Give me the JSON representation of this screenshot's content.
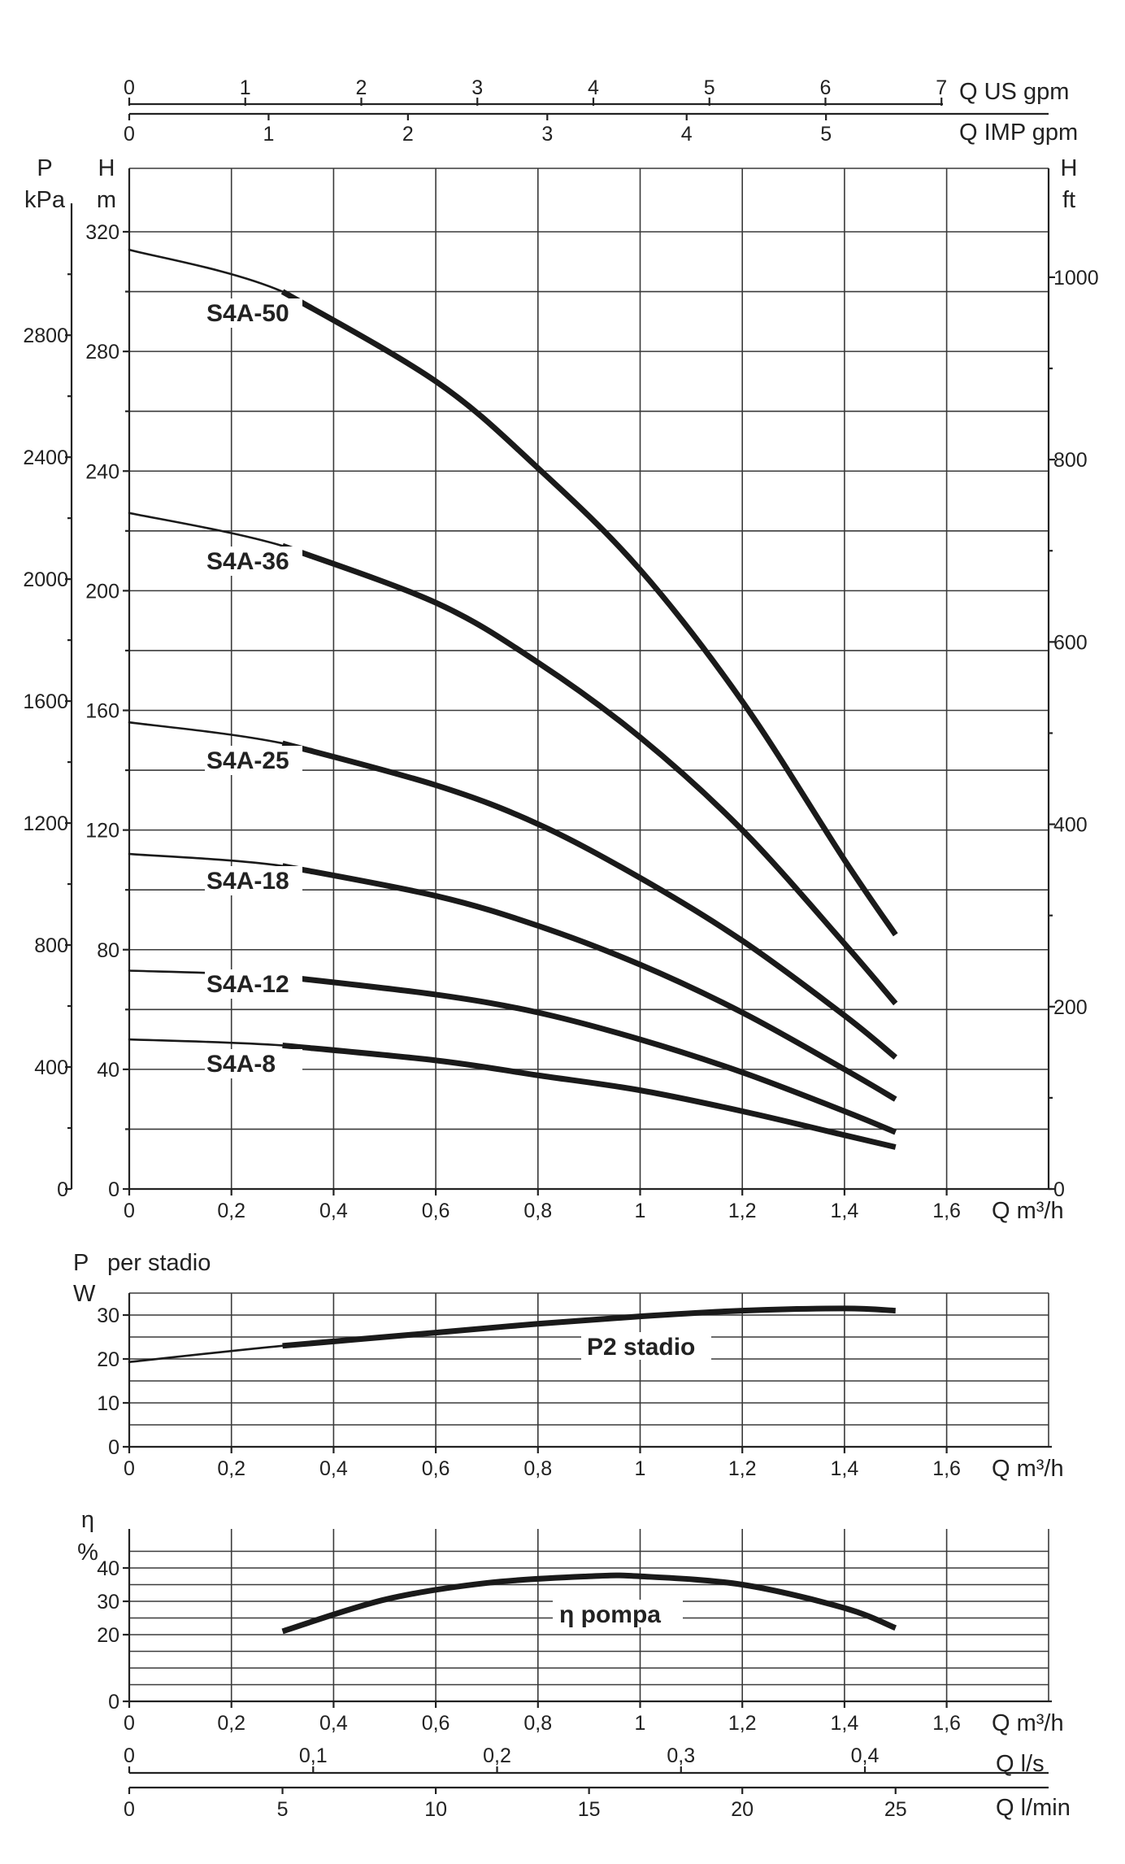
{
  "chart_data": [
    {
      "type": "line",
      "panel": "head",
      "xlabel": "Q m³/h",
      "x_ticks": [
        "0",
        "0,2",
        "0,4",
        "0,6",
        "0,8",
        "1",
        "1,2",
        "1,4",
        "1,6"
      ],
      "xlim": [
        0,
        1.8
      ],
      "ylabel_left_outer": [
        "P",
        "kPa"
      ],
      "ylabel_left_inner": [
        "H",
        "m"
      ],
      "ylabel_right": [
        "H",
        "ft"
      ],
      "ylim": [
        0,
        320
      ],
      "y_ticks_m": [
        "320",
        "280",
        "240",
        "200",
        "160",
        "120",
        "80",
        "40",
        "0"
      ],
      "y_ticks_kpa": [
        "2800",
        "2400",
        "2000",
        "1600",
        "1200",
        "800",
        "400",
        "0"
      ],
      "y_ticks_ft": [
        "1000",
        "800",
        "600",
        "400",
        "200",
        "0"
      ],
      "grid": true,
      "top_axes": [
        {
          "label": "Q US gpm",
          "ticks": [
            "0",
            "1",
            "2",
            "3",
            "4",
            "5",
            "6",
            "7"
          ]
        },
        {
          "label": "Q IMP gpm",
          "ticks": [
            "0",
            "1",
            "2",
            "3",
            "4",
            "5"
          ]
        }
      ],
      "series": [
        {
          "name": "S4A-50",
          "x": [
            0,
            0.3,
            0.6,
            0.8,
            1.0,
            1.2,
            1.4,
            1.5
          ],
          "values": [
            314,
            300,
            270,
            241,
            207,
            163,
            110,
            85
          ]
        },
        {
          "name": "S4A-36",
          "x": [
            0,
            0.3,
            0.6,
            0.8,
            1.0,
            1.2,
            1.4,
            1.5
          ],
          "values": [
            226,
            215,
            196,
            176,
            151,
            120,
            82,
            62
          ]
        },
        {
          "name": "S4A-25",
          "x": [
            0,
            0.3,
            0.6,
            0.8,
            1.0,
            1.2,
            1.4,
            1.5
          ],
          "values": [
            156,
            149,
            135,
            122,
            104,
            83,
            58,
            44
          ]
        },
        {
          "name": "S4A-18",
          "x": [
            0,
            0.3,
            0.6,
            0.8,
            1.0,
            1.2,
            1.4,
            1.5
          ],
          "values": [
            112,
            108,
            98,
            88,
            75,
            59,
            40,
            30
          ]
        },
        {
          "name": "S4A-12",
          "x": [
            0,
            0.3,
            0.6,
            0.8,
            1.0,
            1.2,
            1.4,
            1.5
          ],
          "values": [
            73,
            71,
            65,
            59,
            50,
            39,
            26,
            19
          ]
        },
        {
          "name": "S4A-8",
          "x": [
            0,
            0.3,
            0.6,
            0.8,
            1.0,
            1.2,
            1.4,
            1.5
          ],
          "values": [
            50,
            48,
            43,
            38,
            33,
            26,
            18,
            14
          ]
        }
      ]
    },
    {
      "type": "line",
      "panel": "power",
      "title": "per stadio",
      "ylabel": [
        "P",
        "W"
      ],
      "xlabel": "Q m³/h",
      "x_ticks": [
        "0",
        "0,2",
        "0,4",
        "0,6",
        "0,8",
        "1",
        "1,2",
        "1,4",
        "1,6"
      ],
      "xlim": [
        0,
        1.8
      ],
      "ylim": [
        0,
        35
      ],
      "y_ticks": [
        "30",
        "20",
        "10",
        "0"
      ],
      "grid": true,
      "series": [
        {
          "name": "P2 stadio",
          "x": [
            0,
            0.3,
            0.6,
            0.8,
            1.0,
            1.2,
            1.4,
            1.5
          ],
          "values": [
            19.3,
            23,
            26,
            28,
            29.7,
            31,
            31.5,
            31
          ]
        }
      ]
    },
    {
      "type": "line",
      "panel": "efficiency",
      "ylabel": [
        "η",
        "%"
      ],
      "xlabel": "Q m³/h",
      "x_ticks": [
        "0",
        "0,2",
        "0,4",
        "0,6",
        "0,8",
        "1",
        "1,2",
        "1,4",
        "1,6"
      ],
      "xlim": [
        0,
        1.8
      ],
      "ylim": [
        0,
        45
      ],
      "y_ticks": [
        "40",
        "30",
        "20",
        "0"
      ],
      "grid": true,
      "bottom_axes": [
        {
          "label": "Q l/s",
          "ticks": [
            "0",
            "0,1",
            "0,2",
            "0,3",
            "0,4"
          ]
        },
        {
          "label": "Q l/min",
          "ticks": [
            "0",
            "5",
            "10",
            "15",
            "20",
            "25"
          ]
        }
      ],
      "series": [
        {
          "name": "η pompa",
          "x": [
            0.3,
            0.5,
            0.7,
            0.9,
            1.0,
            1.2,
            1.4,
            1.5
          ],
          "values": [
            21,
            30.5,
            35.5,
            37.5,
            37.5,
            35,
            28,
            22
          ]
        }
      ]
    }
  ]
}
